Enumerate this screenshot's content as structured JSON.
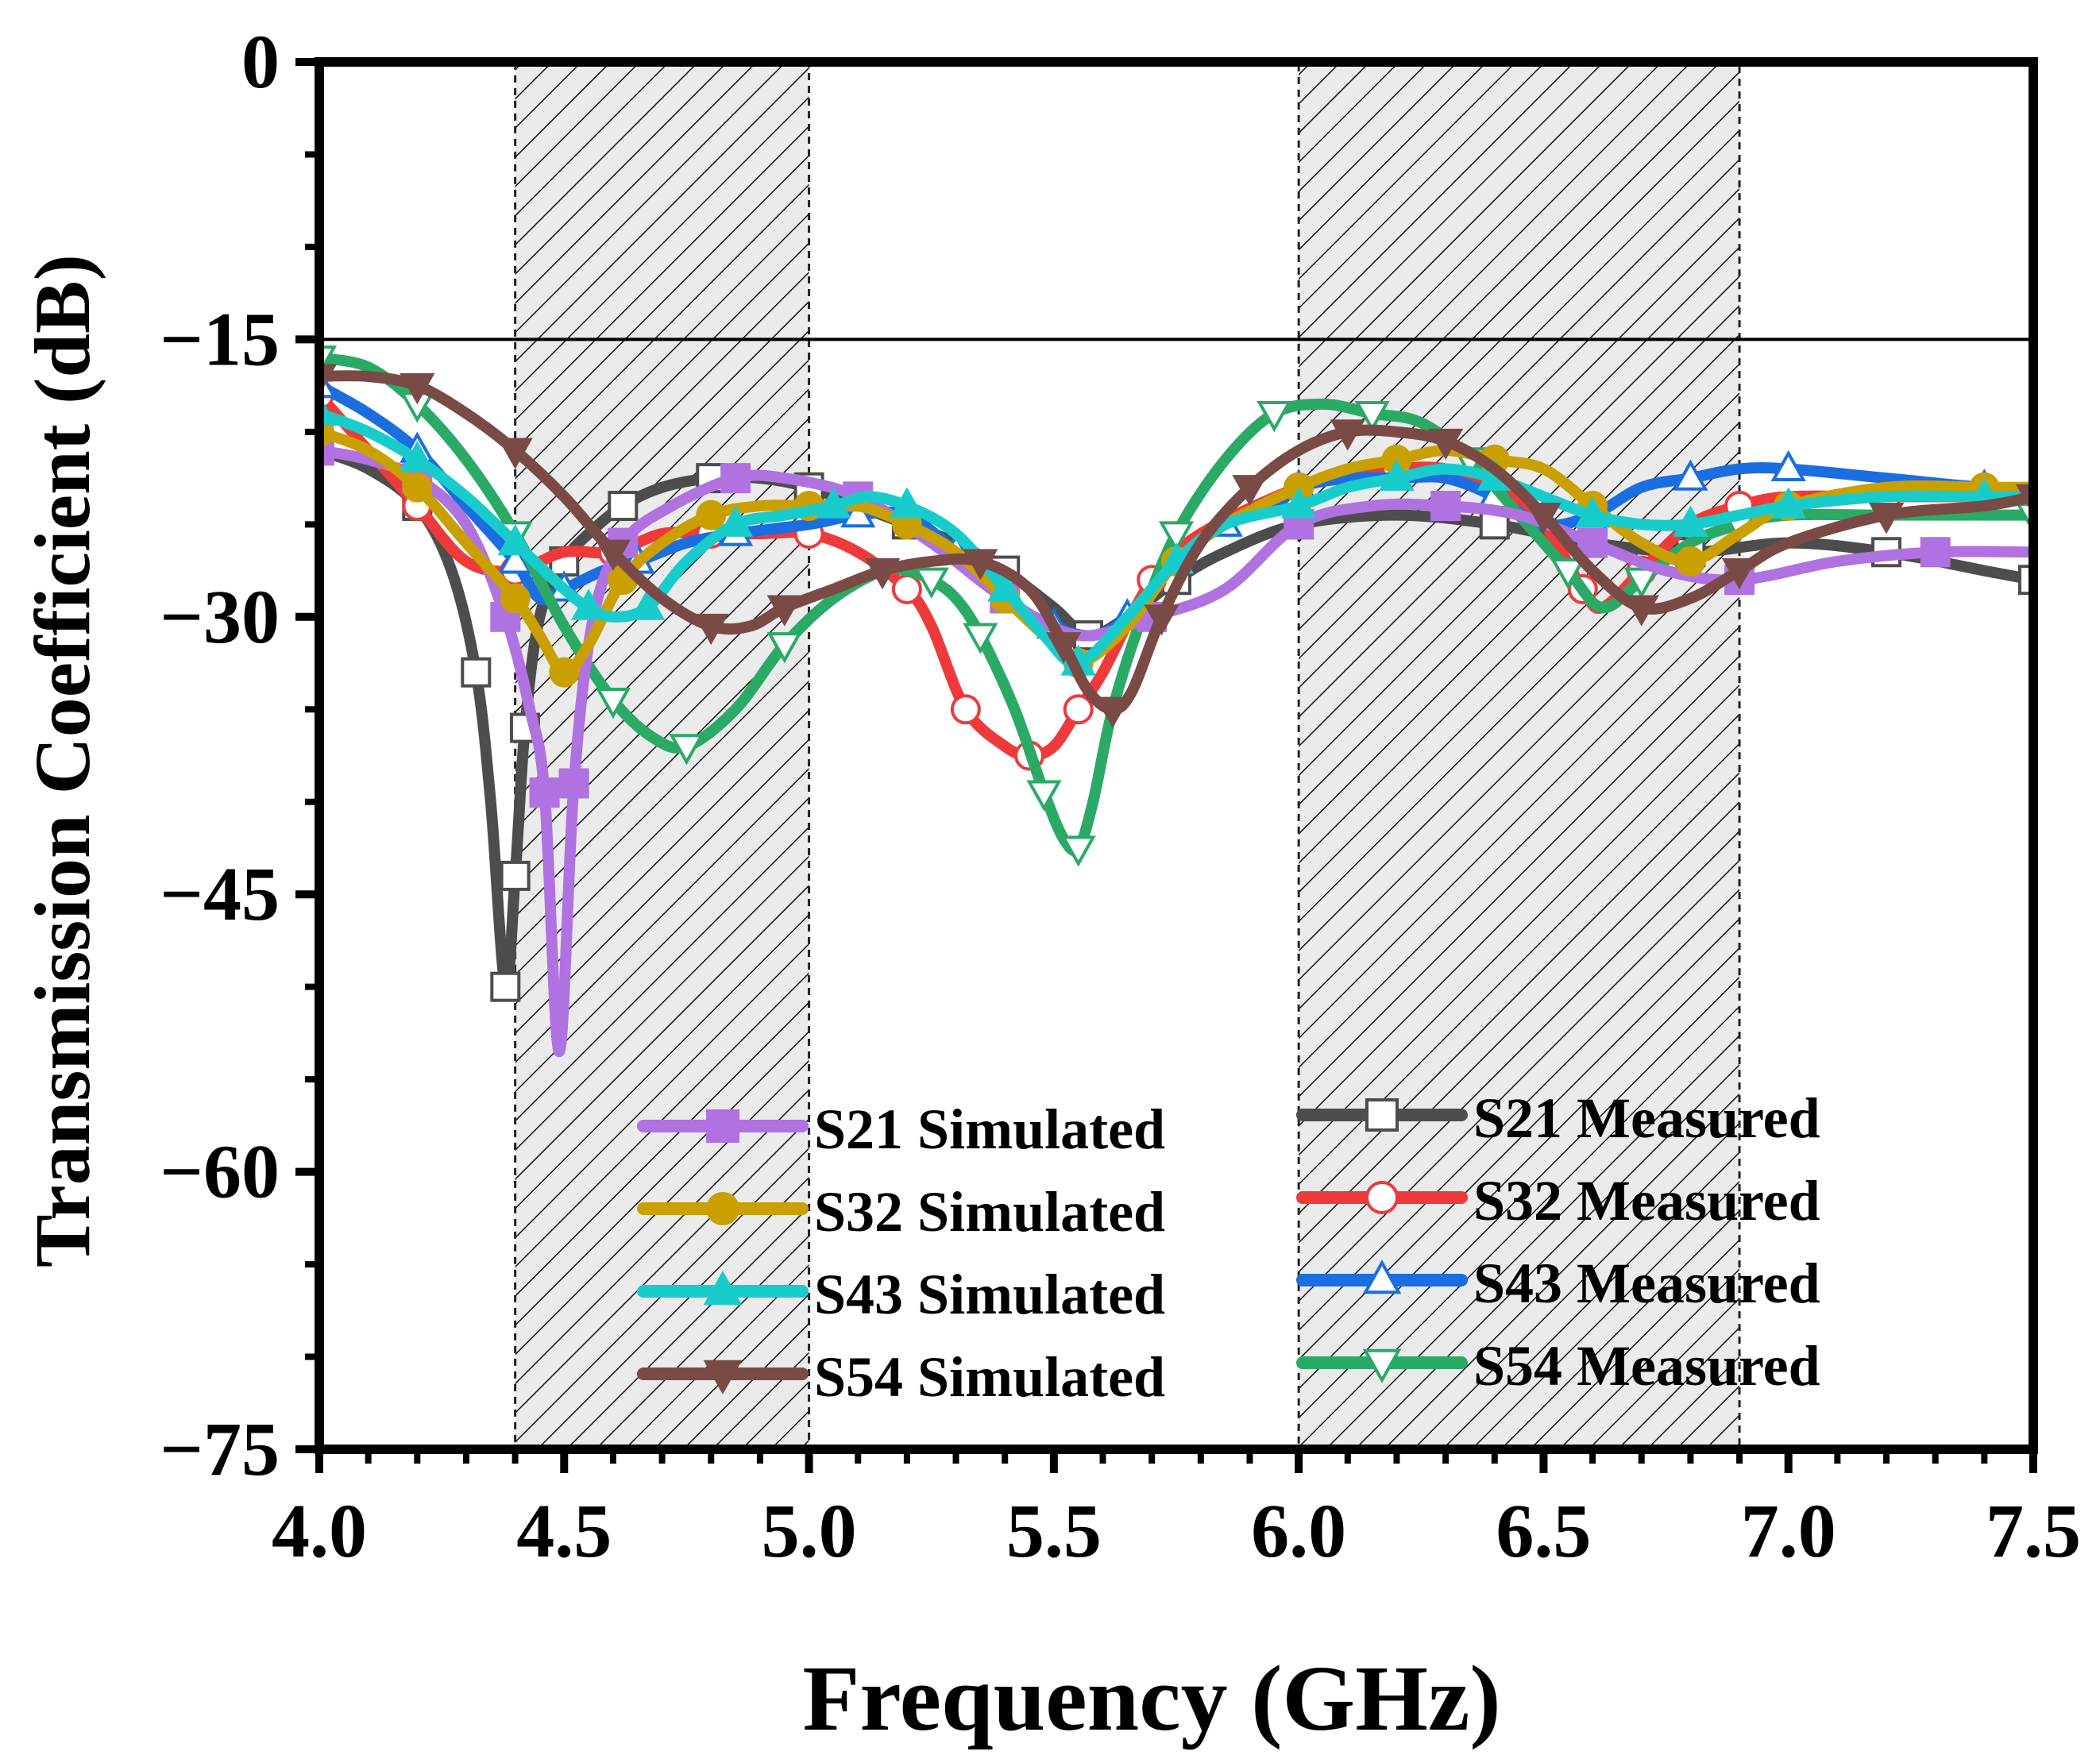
{
  "chart_data": {
    "type": "line",
    "title": "",
    "xlabel": "Frequency (GHz)",
    "ylabel": "Transmission Coefficient (dB)",
    "xlim": [
      4.0,
      7.5
    ],
    "ylim": [
      -75,
      0
    ],
    "xticks": [
      4.0,
      4.5,
      5.0,
      5.5,
      6.0,
      6.5,
      7.0,
      7.5
    ],
    "yticks": [
      0,
      -15,
      -30,
      -45,
      -60,
      -75
    ],
    "xtick_labels": [
      "4.0",
      "4.5",
      "5.0",
      "5.5",
      "6.0",
      "6.5",
      "7.0",
      "7.5"
    ],
    "ytick_labels": [
      "0",
      "−15",
      "−30",
      "−45",
      "−60",
      "−75"
    ],
    "reference_line": {
      "y": -15
    },
    "shaded_bands": [
      {
        "x0": 4.4,
        "x1": 5.0
      },
      {
        "x0": 6.0,
        "x1": 6.9
      }
    ],
    "series": [
      {
        "name": "S21 Simulated",
        "color": "#b072e0",
        "marker": "square",
        "filled": true,
        "x": [
          4.0,
          4.1,
          4.2,
          4.3,
          4.38,
          4.43,
          4.46,
          4.49,
          4.52,
          4.56,
          4.62,
          4.72,
          4.85,
          4.95,
          5.1,
          5.25,
          5.4,
          5.55,
          5.7,
          5.85,
          6.0,
          6.15,
          6.3,
          6.45,
          6.6,
          6.75,
          6.9,
          7.1,
          7.3,
          7.5
        ],
        "y": [
          -21,
          -21.5,
          -22.5,
          -25,
          -30,
          -35,
          -39.5,
          -53.5,
          -39,
          -30,
          -26,
          -24,
          -22.5,
          -22.5,
          -23.5,
          -26,
          -29,
          -31,
          -30,
          -28.5,
          -25,
          -24,
          -24,
          -24.5,
          -26,
          -27.5,
          -28,
          -27,
          -26.5,
          -26.5
        ]
      },
      {
        "name": "S32 Simulated",
        "color": "#c9a000",
        "marker": "circle",
        "filled": true,
        "x": [
          4.0,
          4.1,
          4.2,
          4.3,
          4.4,
          4.45,
          4.5,
          4.55,
          4.62,
          4.7,
          4.8,
          4.9,
          5.0,
          5.1,
          5.2,
          5.3,
          5.4,
          5.48,
          5.55,
          5.65,
          5.75,
          5.85,
          6.0,
          6.1,
          6.2,
          6.3,
          6.4,
          6.5,
          6.6,
          6.7,
          6.8,
          6.9,
          7.0,
          7.2,
          7.4,
          7.5
        ],
        "y": [
          -20,
          -21,
          -23,
          -26,
          -29,
          -31,
          -33,
          -31.5,
          -28,
          -26,
          -24.5,
          -24,
          -24,
          -24,
          -25,
          -26.5,
          -29,
          -31,
          -32.5,
          -30.5,
          -27,
          -25,
          -23,
          -22,
          -21.5,
          -21,
          -21.5,
          -22,
          -24,
          -26,
          -27,
          -25.5,
          -24,
          -23,
          -23,
          -23
        ]
      },
      {
        "name": "S43 Simulated",
        "color": "#18cccc",
        "marker": "triangle-up",
        "filled": true,
        "x": [
          4.0,
          4.1,
          4.2,
          4.3,
          4.4,
          4.5,
          4.55,
          4.6,
          4.67,
          4.75,
          4.85,
          4.95,
          5.05,
          5.12,
          5.2,
          5.3,
          5.4,
          5.48,
          5.55,
          5.65,
          5.75,
          5.85,
          6.0,
          6.1,
          6.2,
          6.3,
          6.4,
          6.5,
          6.6,
          6.7,
          6.8,
          6.9,
          7.0,
          7.2,
          7.4,
          7.5
        ],
        "y": [
          -19,
          -20,
          -21.5,
          -23.5,
          -26,
          -28.5,
          -29.5,
          -30,
          -29.5,
          -27,
          -25,
          -24.5,
          -24,
          -23.5,
          -24,
          -25.5,
          -28.5,
          -31,
          -32.5,
          -30,
          -27,
          -25,
          -24,
          -23,
          -22.5,
          -22,
          -22.5,
          -23.5,
          -24.5,
          -25,
          -25,
          -24.5,
          -24,
          -23.5,
          -23.5,
          -23.5
        ]
      },
      {
        "name": "S54 Simulated",
        "color": "#7a4a46",
        "marker": "triangle-down",
        "filled": true,
        "x": [
          4.0,
          4.1,
          4.2,
          4.3,
          4.4,
          4.5,
          4.6,
          4.7,
          4.8,
          4.88,
          4.95,
          5.05,
          5.15,
          5.25,
          5.35,
          5.45,
          5.52,
          5.57,
          5.62,
          5.66,
          5.72,
          5.8,
          5.9,
          6.0,
          6.1,
          6.2,
          6.3,
          6.4,
          6.5,
          6.6,
          6.7,
          6.8,
          6.9,
          7.0,
          7.2,
          7.4,
          7.5
        ],
        "y": [
          -17,
          -17,
          -17.5,
          -19,
          -21,
          -23.5,
          -26.5,
          -29,
          -30.5,
          -30.5,
          -29.5,
          -28.5,
          -27.5,
          -27,
          -27,
          -28.5,
          -31.5,
          -34,
          -35,
          -34,
          -30,
          -26,
          -23,
          -21,
          -20,
          -20,
          -20.5,
          -22,
          -24.5,
          -27.5,
          -29.5,
          -29,
          -27.5,
          -26,
          -24.5,
          -24,
          -23.5
        ]
      },
      {
        "name": "S21 Measured",
        "color": "#4d4d4d",
        "marker": "square",
        "filled": false,
        "x": [
          4.0,
          4.1,
          4.2,
          4.27,
          4.32,
          4.35,
          4.38,
          4.4,
          4.42,
          4.45,
          4.5,
          4.55,
          4.62,
          4.7,
          4.8,
          4.9,
          5.0,
          5.1,
          5.2,
          5.3,
          5.4,
          5.5,
          5.57,
          5.65,
          5.75,
          5.85,
          6.0,
          6.2,
          6.4,
          6.6,
          6.8,
          7.0,
          7.2,
          7.4,
          7.5
        ],
        "y": [
          -21,
          -22,
          -24,
          -27.5,
          -33,
          -40,
          -50,
          -44,
          -36,
          -30,
          -27,
          -25.5,
          -24,
          -23,
          -22.5,
          -22.5,
          -23,
          -24,
          -25,
          -26,
          -27.5,
          -29.5,
          -31,
          -30,
          -28,
          -26.5,
          -25,
          -24.5,
          -25,
          -26,
          -26.5,
          -26,
          -26.5,
          -27.5,
          -28
        ]
      },
      {
        "name": "S32 Measured",
        "color": "#ee3a3a",
        "marker": "circle",
        "filled": false,
        "x": [
          4.0,
          4.1,
          4.2,
          4.3,
          4.4,
          4.5,
          4.6,
          4.7,
          4.8,
          4.9,
          5.0,
          5.1,
          5.2,
          5.25,
          5.32,
          5.4,
          5.45,
          5.5,
          5.55,
          5.6,
          5.7,
          5.8,
          6.0,
          6.1,
          6.2,
          6.3,
          6.4,
          6.5,
          6.58,
          6.62,
          6.7,
          6.8,
          6.9,
          7.0,
          7.2,
          7.4,
          7.5
        ],
        "y": [
          -18,
          -21,
          -24,
          -27,
          -27.5,
          -26.5,
          -26.5,
          -25.5,
          -25.5,
          -25.5,
          -25.5,
          -26.5,
          -28.5,
          -30.5,
          -35,
          -37,
          -37.5,
          -37,
          -35,
          -33,
          -28,
          -25.5,
          -23,
          -22.5,
          -22,
          -22,
          -23,
          -25,
          -28.5,
          -29.5,
          -27.5,
          -25,
          -24,
          -23.5,
          -23.5,
          -23.5,
          -23.5
        ]
      },
      {
        "name": "S43 Measured",
        "color": "#1a6ee0",
        "marker": "triangle-up",
        "filled": false,
        "x": [
          4.0,
          4.1,
          4.2,
          4.3,
          4.4,
          4.45,
          4.5,
          4.58,
          4.65,
          4.75,
          4.85,
          5.0,
          5.1,
          5.2,
          5.3,
          5.4,
          5.5,
          5.58,
          5.65,
          5.75,
          5.85,
          5.95,
          6.0,
          6.1,
          6.2,
          6.3,
          6.4,
          6.5,
          6.6,
          6.7,
          6.8,
          6.9,
          7.0,
          7.2,
          7.4,
          7.5
        ],
        "y": [
          -17.5,
          -19,
          -21,
          -24,
          -27,
          -29,
          -28.5,
          -27.5,
          -27,
          -26,
          -25.5,
          -25,
          -24.5,
          -24.5,
          -26.5,
          -29,
          -30.5,
          -31,
          -30,
          -27,
          -25,
          -24,
          -23,
          -22.5,
          -22.5,
          -22.5,
          -23.5,
          -25,
          -24.5,
          -23,
          -22.5,
          -22,
          -22,
          -22.5,
          -23,
          -23
        ]
      },
      {
        "name": "S54 Measured",
        "color": "#2aaa66",
        "marker": "triangle-down",
        "filled": false,
        "x": [
          4.0,
          4.1,
          4.2,
          4.3,
          4.4,
          4.5,
          4.6,
          4.68,
          4.75,
          4.85,
          4.95,
          5.05,
          5.15,
          5.2,
          5.25,
          5.3,
          5.35,
          5.42,
          5.48,
          5.52,
          5.55,
          5.58,
          5.62,
          5.68,
          5.75,
          5.85,
          5.95,
          6.05,
          6.15,
          6.25,
          6.35,
          6.45,
          6.55,
          6.62,
          6.7,
          6.8,
          6.9,
          7.0,
          7.2,
          7.4,
          7.5
        ],
        "y": [
          -16,
          -16.5,
          -18.5,
          -21.5,
          -25.5,
          -30.5,
          -34.5,
          -36.5,
          -37,
          -35,
          -31.5,
          -29,
          -27.5,
          -27.5,
          -28,
          -29,
          -31,
          -35,
          -39.5,
          -42,
          -42.5,
          -40,
          -35,
          -30,
          -25.5,
          -21.5,
          -19,
          -18.5,
          -19,
          -19.5,
          -21.5,
          -24.5,
          -27.5,
          -29.5,
          -28,
          -26,
          -25,
          -24.5,
          -24.5,
          -24.5,
          -24.5
        ]
      }
    ]
  }
}
